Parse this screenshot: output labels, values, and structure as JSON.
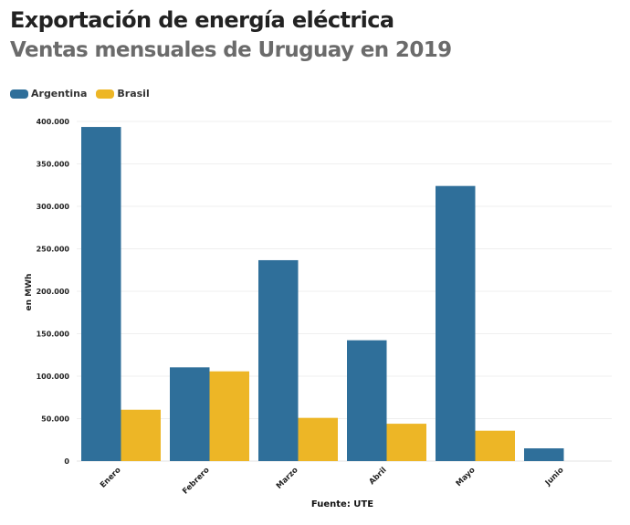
{
  "chart_data": {
    "type": "bar",
    "title": "Exportación de energía eléctrica",
    "subtitle": "Ventas mensuales de Uruguay en 2019",
    "categories": [
      "Enero",
      "Febrero",
      "Marzo",
      "Abril",
      "Mayo",
      "Junio"
    ],
    "series": [
      {
        "name": "Argentina",
        "color": "#2f6f9a",
        "values": [
          393500,
          110400,
          236600,
          142300,
          324000,
          15000
        ]
      },
      {
        "name": "Brasil",
        "color": "#edb626",
        "values": [
          60500,
          105700,
          50900,
          44000,
          35800,
          0
        ]
      }
    ],
    "xlabel": "",
    "ylabel": "en MWh",
    "ylim": [
      0,
      400000
    ],
    "yticks": [
      0,
      50000,
      100000,
      150000,
      200000,
      250000,
      300000,
      350000,
      400000
    ],
    "ytick_labels": [
      "0",
      "50.000",
      "100.000",
      "150.000",
      "200.000",
      "250.000",
      "300.000",
      "350.000",
      "400.000"
    ],
    "grid": true,
    "legend_position": "top-left",
    "source": "Fuente: UTE"
  }
}
